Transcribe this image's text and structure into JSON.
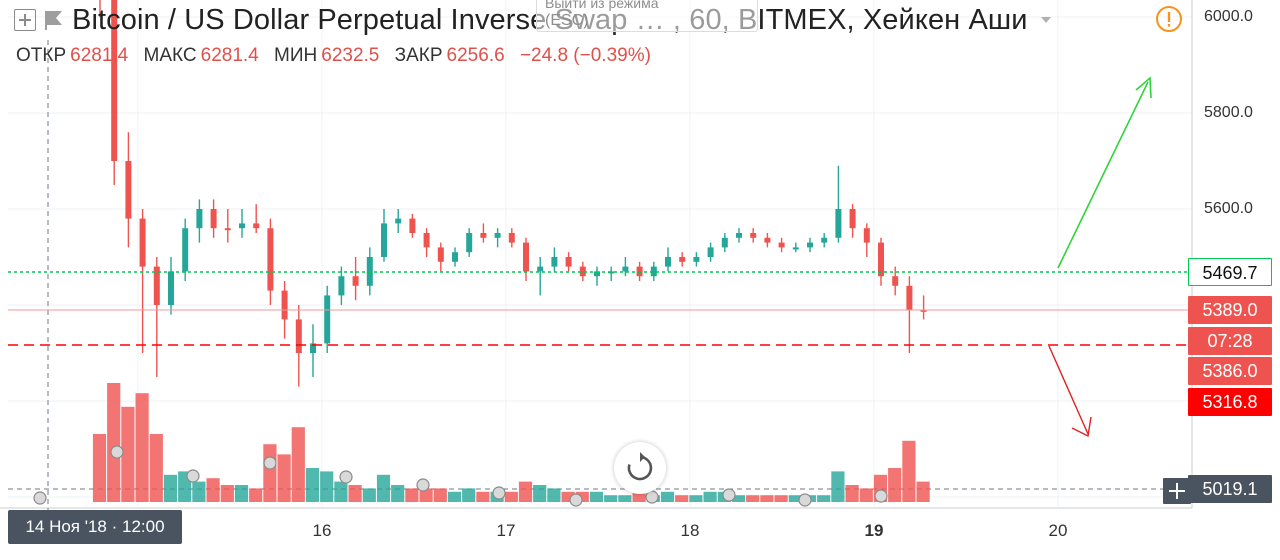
{
  "header": {
    "title_main": "Bitcoin / US Dollar Perpetual Inverse Swap",
    "title_tail": "…  , 60, BITMEX, Хейкен Аши",
    "exit_hint_line1": "Выйти из режима",
    "exit_hint_line2": "(ESC)"
  },
  "ohlc": {
    "open_label": "ОТКР",
    "open_value": "6281.4",
    "high_label": "МАКС",
    "high_value": "6281.4",
    "low_label": "МИН",
    "low_value": "6232.5",
    "close_label": "ЗАКР",
    "close_value": "6256.6",
    "change": "−24.8 (−0.39%)"
  },
  "price_axis": {
    "ticks": [
      "6000.0",
      "5800.0",
      "5600.0"
    ],
    "badges": {
      "green_line": "5469.7",
      "last_price": "5389.0",
      "countdown": "07:28",
      "sell_price": "5386.0",
      "red_line": "5316.8",
      "crosshair": "5019.1"
    }
  },
  "time_axis": {
    "labels": [
      "16",
      "17",
      "18",
      "19",
      "20"
    ],
    "cursor": "14 Ноя '18 · 12:00"
  },
  "colors": {
    "up": "#26a69a",
    "down": "#ef5350",
    "green_line": "#00c853",
    "red_line": "#ff0000",
    "orange_warning": "#f7931a"
  },
  "icons": {
    "warning": "exclamation-circle-icon",
    "replay": "rotate-icon",
    "plus": "plus-icon",
    "symbol": "flag-icon"
  },
  "chart_data": {
    "type": "candlestick",
    "title": "Bitcoin / US Dollar Perpetual Inverse Swap …, 60, BITMEX, Хейкен Аши",
    "ylim": [
      4980,
      6040
    ],
    "x_tick_labels": [
      "16",
      "17",
      "18",
      "19",
      "20"
    ],
    "horizontal_lines": [
      {
        "value": 5469.7,
        "color": "#00c853",
        "style": "dotted"
      },
      {
        "value": 5316.8,
        "color": "#ff0000",
        "style": "dashed"
      },
      {
        "value": 5389.0,
        "color": "#ef9a9a",
        "style": "solid"
      }
    ],
    "series": [
      {
        "name": "Хейкен Аши",
        "candles": [
          [
            6200,
            6281,
            6000,
            6050,
            "down",
            20
          ],
          [
            6050,
            6080,
            5650,
            5700,
            "down",
            35
          ],
          [
            5700,
            5760,
            5520,
            5580,
            "down",
            28
          ],
          [
            5580,
            5600,
            5300,
            5480,
            "down",
            32
          ],
          [
            5480,
            5500,
            5250,
            5400,
            "down",
            20
          ],
          [
            5400,
            5500,
            5380,
            5470,
            "up",
            8
          ],
          [
            5470,
            5580,
            5450,
            5560,
            "up",
            9
          ],
          [
            5560,
            5620,
            5530,
            5600,
            "up",
            6
          ],
          [
            5600,
            5620,
            5540,
            5560,
            "down",
            7
          ],
          [
            5560,
            5600,
            5530,
            5560,
            "down",
            5
          ],
          [
            5560,
            5600,
            5540,
            5570,
            "up",
            5
          ],
          [
            5570,
            5610,
            5550,
            5560,
            "down",
            4
          ],
          [
            5560,
            5580,
            5400,
            5430,
            "down",
            17
          ],
          [
            5430,
            5450,
            5330,
            5370,
            "down",
            14
          ],
          [
            5370,
            5400,
            5230,
            5300,
            "down",
            22
          ],
          [
            5300,
            5360,
            5250,
            5320,
            "up",
            10
          ],
          [
            5320,
            5440,
            5300,
            5420,
            "up",
            9
          ],
          [
            5420,
            5480,
            5400,
            5460,
            "up",
            6
          ],
          [
            5460,
            5500,
            5410,
            5440,
            "down",
            5
          ],
          [
            5440,
            5520,
            5420,
            5500,
            "up",
            4
          ],
          [
            5500,
            5600,
            5490,
            5570,
            "up",
            8
          ],
          [
            5570,
            5600,
            5550,
            5580,
            "up",
            5
          ],
          [
            5580,
            5590,
            5540,
            5550,
            "down",
            4
          ],
          [
            5550,
            5560,
            5500,
            5520,
            "down",
            4
          ],
          [
            5520,
            5530,
            5470,
            5490,
            "down",
            4
          ],
          [
            5490,
            5520,
            5480,
            5510,
            "up",
            3
          ],
          [
            5510,
            5560,
            5500,
            5550,
            "up",
            4
          ],
          [
            5550,
            5570,
            5530,
            5540,
            "down",
            3
          ],
          [
            5540,
            5560,
            5520,
            5550,
            "up",
            3
          ],
          [
            5550,
            5560,
            5520,
            5530,
            "down",
            3
          ],
          [
            5530,
            5540,
            5450,
            5470,
            "down",
            6
          ],
          [
            5470,
            5500,
            5420,
            5480,
            "up",
            5
          ],
          [
            5480,
            5520,
            5470,
            5500,
            "up",
            4
          ],
          [
            5500,
            5510,
            5470,
            5480,
            "down",
            3
          ],
          [
            5480,
            5490,
            5450,
            5460,
            "down",
            3
          ],
          [
            5460,
            5480,
            5440,
            5470,
            "up",
            3
          ],
          [
            5470,
            5480,
            5450,
            5470,
            "up",
            2
          ],
          [
            5470,
            5500,
            5460,
            5480,
            "up",
            2
          ],
          [
            5480,
            5490,
            5450,
            5460,
            "down",
            3
          ],
          [
            5460,
            5490,
            5450,
            5480,
            "up",
            2
          ],
          [
            5480,
            5520,
            5470,
            5500,
            "up",
            3
          ],
          [
            5500,
            5510,
            5480,
            5490,
            "down",
            2
          ],
          [
            5490,
            5510,
            5480,
            5500,
            "up",
            2
          ],
          [
            5500,
            5530,
            5490,
            5520,
            "up",
            3
          ],
          [
            5520,
            5550,
            5510,
            5540,
            "up",
            3
          ],
          [
            5540,
            5560,
            5530,
            5550,
            "up",
            2
          ],
          [
            5550,
            5560,
            5530,
            5540,
            "down",
            2
          ],
          [
            5540,
            5550,
            5520,
            5530,
            "down",
            2
          ],
          [
            5530,
            5540,
            5510,
            5520,
            "down",
            2
          ],
          [
            5520,
            5530,
            5510,
            5520,
            "up",
            2
          ],
          [
            5520,
            5540,
            5510,
            5530,
            "up",
            2
          ],
          [
            5530,
            5550,
            5520,
            5540,
            "up",
            2
          ],
          [
            5540,
            5690,
            5530,
            5600,
            "up",
            9
          ],
          [
            5600,
            5610,
            5540,
            5560,
            "down",
            5
          ],
          [
            5560,
            5570,
            5500,
            5530,
            "down",
            4
          ],
          [
            5530,
            5540,
            5440,
            5460,
            "down",
            8
          ],
          [
            5460,
            5480,
            5420,
            5440,
            "down",
            10
          ],
          [
            5440,
            5460,
            5300,
            5390,
            "down",
            18
          ],
          [
            5390,
            5420,
            5370,
            5389,
            "down",
            6
          ]
        ]
      }
    ]
  }
}
